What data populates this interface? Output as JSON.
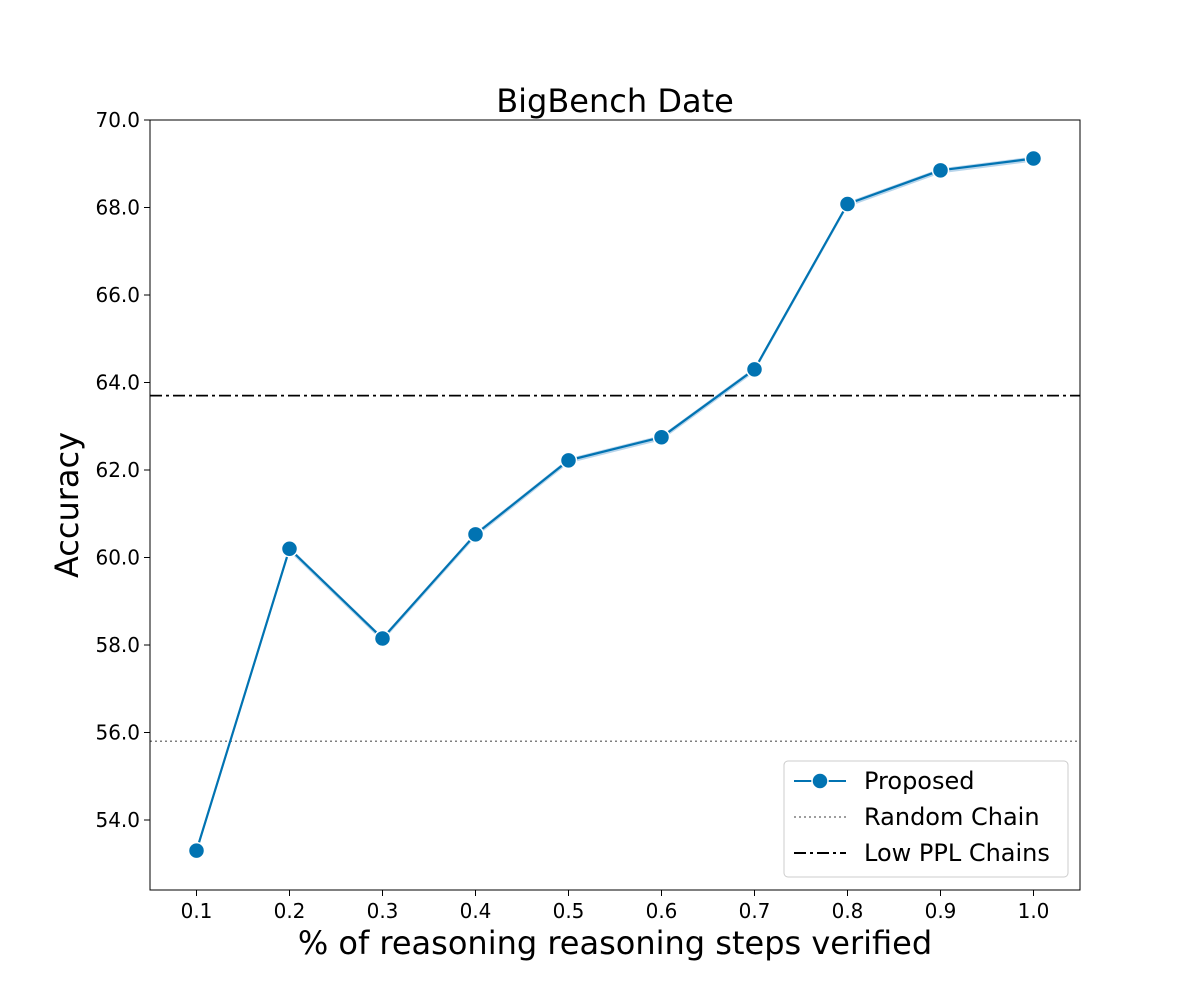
{
  "chart_data": {
    "type": "line",
    "title": "BigBench Date",
    "xlabel": "% of reasoning reasoning steps verified",
    "ylabel": "Accuracy",
    "x": [
      0.1,
      0.2,
      0.3,
      0.4,
      0.5,
      0.6,
      0.7,
      0.8,
      0.9,
      1.0
    ],
    "xticks": [
      "0.1",
      "0.2",
      "0.3",
      "0.4",
      "0.5",
      "0.6",
      "0.7",
      "0.8",
      "0.9",
      "1.0"
    ],
    "yticks": [
      "54.0",
      "56.0",
      "58.0",
      "60.0",
      "62.0",
      "64.0",
      "66.0",
      "68.0",
      "70.0"
    ],
    "xlim": [
      0.05,
      1.05
    ],
    "ylim": [
      52.4,
      70.0
    ],
    "grid": false,
    "legend_position": "bottom-right",
    "series": [
      {
        "name": "Proposed",
        "values": [
          53.3,
          60.2,
          58.15,
          60.53,
          62.22,
          62.75,
          64.3,
          68.08,
          68.85,
          69.12
        ],
        "color": "#0173b2",
        "band_color": "#a6cbe6",
        "marker": "circle"
      }
    ],
    "reference_lines": [
      {
        "name": "Random Chain",
        "value": 55.8,
        "style": "dotted",
        "color": "#7f7f7f"
      },
      {
        "name": "Low PPL Chains",
        "value": 63.7,
        "style": "dashdot",
        "color": "#000000"
      }
    ]
  }
}
